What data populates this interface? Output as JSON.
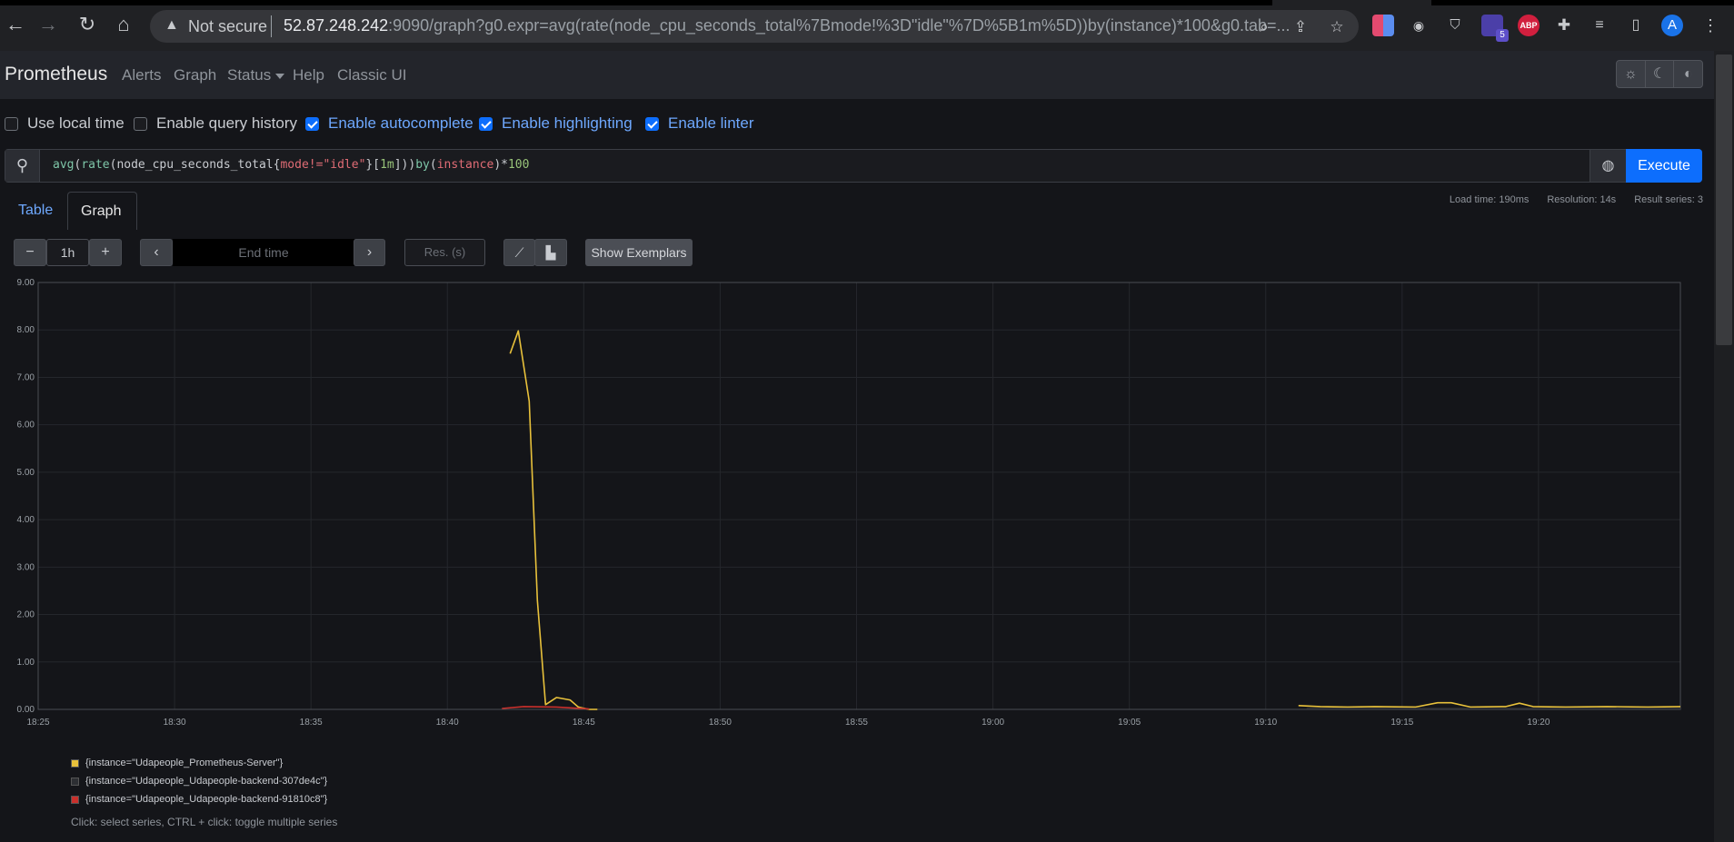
{
  "browser": {
    "security_label": "Not secure",
    "url_host": "52.87.248.242",
    "url_rest": ":9090/graph?g0.expr=avg(rate(node_cpu_seconds_total%7Bmode!%3D\"idle\"%7D%5B1m%5D))by(instance)*100&g0.tab=...",
    "extension_badge": "5",
    "abp_label": "ABP",
    "profile_initial": "A"
  },
  "navbar": {
    "brand": "Prometheus",
    "links": [
      "Alerts",
      "Graph",
      "Status",
      "Help",
      "Classic UI"
    ]
  },
  "options": [
    {
      "label": "Use local time",
      "checked": false
    },
    {
      "label": "Enable query history",
      "checked": false
    },
    {
      "label": "Enable autocomplete",
      "checked": true
    },
    {
      "label": "Enable highlighting",
      "checked": true
    },
    {
      "label": "Enable linter",
      "checked": true
    }
  ],
  "query": {
    "parts": {
      "p1": "avg",
      "p2": "(",
      "p3": "rate",
      "p4": "(node_cpu_seconds_total{",
      "p5": "mode",
      "p6": "!=",
      "p7": "\"idle\"",
      "p8": "}[",
      "p9": "1m",
      "p10": "]))",
      "p11": "by",
      "p12": "(",
      "p13": "instance",
      "p14": ")*",
      "p15": "100"
    },
    "execute_label": "Execute"
  },
  "tabs": {
    "table": "Table",
    "graph": "Graph"
  },
  "stats": {
    "load_time": "Load time: 190ms",
    "resolution": "Resolution: 14s",
    "result_series": "Result series: 3"
  },
  "controls": {
    "minus": "−",
    "range": "1h",
    "plus": "+",
    "end_time_placeholder": "End time",
    "res_placeholder": "Res. (s)",
    "show_exemplars": "Show Exemplars"
  },
  "chart_data": {
    "type": "line",
    "y_ticks": [
      "9.00",
      "8.00",
      "7.00",
      "6.00",
      "5.00",
      "4.00",
      "3.00",
      "2.00",
      "1.00",
      "0.00"
    ],
    "x_ticks": [
      "18:25",
      "18:30",
      "18:35",
      "18:40",
      "18:45",
      "18:50",
      "18:55",
      "19:00",
      "19:05",
      "19:10",
      "19:15",
      "19:20"
    ],
    "ylim": [
      0,
      9
    ],
    "x_unit": "minutes since 18:25",
    "xlim": [
      0,
      60.2
    ],
    "series": [
      {
        "name": "{instance=\"Udapeople_Prometheus-Server\"}",
        "color": "#e8c13b",
        "segments": [
          [
            [
              17.3,
              7.5
            ],
            [
              17.6,
              7.98
            ],
            [
              18.0,
              6.5
            ],
            [
              18.3,
              2.3
            ],
            [
              18.6,
              0.1
            ],
            [
              19.0,
              0.25
            ],
            [
              19.5,
              0.2
            ],
            [
              19.8,
              0.05
            ],
            [
              20.2,
              0.0
            ],
            [
              20.5,
              0.0
            ]
          ],
          [
            [
              46.2,
              0.08
            ],
            [
              47.0,
              0.06
            ],
            [
              48.0,
              0.05
            ],
            [
              49.0,
              0.06
            ],
            [
              50.5,
              0.05
            ],
            [
              51.3,
              0.14
            ],
            [
              51.8,
              0.14
            ],
            [
              52.5,
              0.05
            ],
            [
              53.8,
              0.06
            ],
            [
              54.3,
              0.13
            ],
            [
              54.8,
              0.06
            ],
            [
              56.0,
              0.05
            ],
            [
              57.5,
              0.06
            ],
            [
              59.0,
              0.05
            ],
            [
              60.2,
              0.06
            ]
          ]
        ]
      },
      {
        "name": "{instance=\"Udapeople_Udapeople-backend-307de4c\"}",
        "color": "#2d2f33",
        "segments": [
          [
            [
              46.5,
              0.02
            ],
            [
              50.0,
              0.02
            ],
            [
              55.0,
              0.02
            ],
            [
              60.2,
              0.02
            ]
          ]
        ]
      },
      {
        "name": "{instance=\"Udapeople_Udapeople-backend-91810c8\"}",
        "color": "#c9302c",
        "segments": [
          [
            [
              17.0,
              0.02
            ],
            [
              17.8,
              0.06
            ],
            [
              19.0,
              0.05
            ],
            [
              20.2,
              0.01
            ]
          ]
        ]
      }
    ]
  },
  "legend": {
    "hint": "Click: select series, CTRL + click: toggle multiple series"
  }
}
